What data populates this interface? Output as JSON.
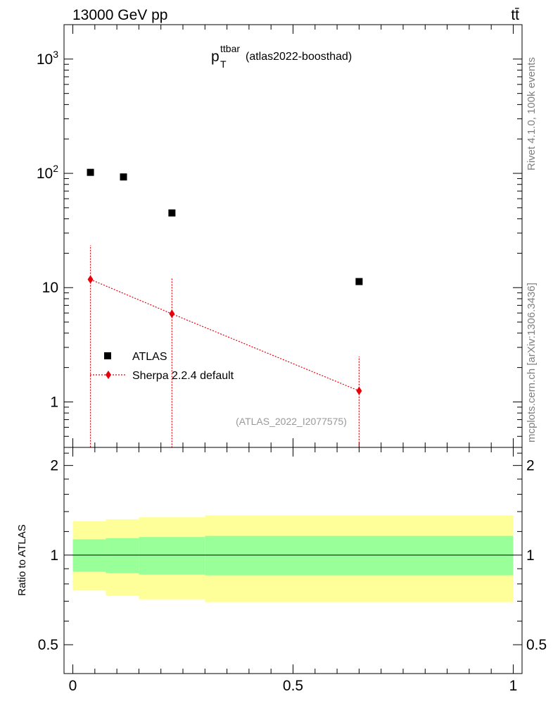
{
  "header": {
    "energy_label": "13000 GeV pp",
    "process_label": "tt̄",
    "title_main": "p",
    "title_sup": "ttbar",
    "title_sub": "T",
    "title_suffix": "(atlas2022-boosthad)",
    "analysis_tag": "(ATLAS_2022_I2077575)"
  },
  "side_text": {
    "rivet": "Rivet 4.1.0,  100k events",
    "mcplots": "mcplots.cern.ch [arXiv:1306.3436]"
  },
  "legend": {
    "atlas": "ATLAS",
    "sherpa": "Sherpa 2.2.4 default"
  },
  "colors": {
    "data": "#000000",
    "mc": "#e8000b",
    "band_inner": "#99ff99",
    "band_outer": "#ffff99"
  },
  "chart_data": [
    {
      "type": "scatter",
      "panel": "main",
      "yscale": "log",
      "xlim": [
        -0.02,
        1.02
      ],
      "ylim": [
        0.4,
        2000
      ],
      "ytick_labels": [
        "1",
        "10",
        "10^2",
        "10^3"
      ],
      "series": [
        {
          "name": "ATLAS",
          "marker": "square",
          "x": [
            0.04,
            0.115,
            0.225,
            0.65
          ],
          "y": [
            102,
            93,
            45,
            11.3
          ]
        },
        {
          "name": "Sherpa 2.2.4 default",
          "marker": "diamond",
          "line": "dotted",
          "x": [
            0.04,
            0.225,
            0.65
          ],
          "y": [
            11.8,
            5.9,
            1.25
          ],
          "yerr_up": [
            23.5,
            12.0,
            2.5
          ],
          "yerr_down": [
            0.0,
            0.0,
            0.0
          ]
        }
      ]
    },
    {
      "type": "area",
      "panel": "ratio",
      "ylabel": "Ratio to ATLAS",
      "yscale": "log",
      "ylim": [
        0.4,
        2.3
      ],
      "xlim": [
        -0.02,
        1.02
      ],
      "ytick_labels": [
        "0.5",
        "1",
        "2"
      ],
      "xtick_labels": [
        "0",
        "0.5",
        "1"
      ],
      "reference_line": 1,
      "bins": [
        {
          "x_low": 0.0,
          "x_high": 0.075,
          "inner": [
            0.88,
            1.13
          ],
          "outer": [
            0.76,
            1.3
          ]
        },
        {
          "x_low": 0.075,
          "x_high": 0.15,
          "inner": [
            0.87,
            1.14
          ],
          "outer": [
            0.73,
            1.32
          ]
        },
        {
          "x_low": 0.15,
          "x_high": 0.3,
          "inner": [
            0.86,
            1.15
          ],
          "outer": [
            0.71,
            1.34
          ]
        },
        {
          "x_low": 0.3,
          "x_high": 1.0,
          "inner": [
            0.855,
            1.16
          ],
          "outer": [
            0.695,
            1.36
          ]
        }
      ]
    }
  ]
}
